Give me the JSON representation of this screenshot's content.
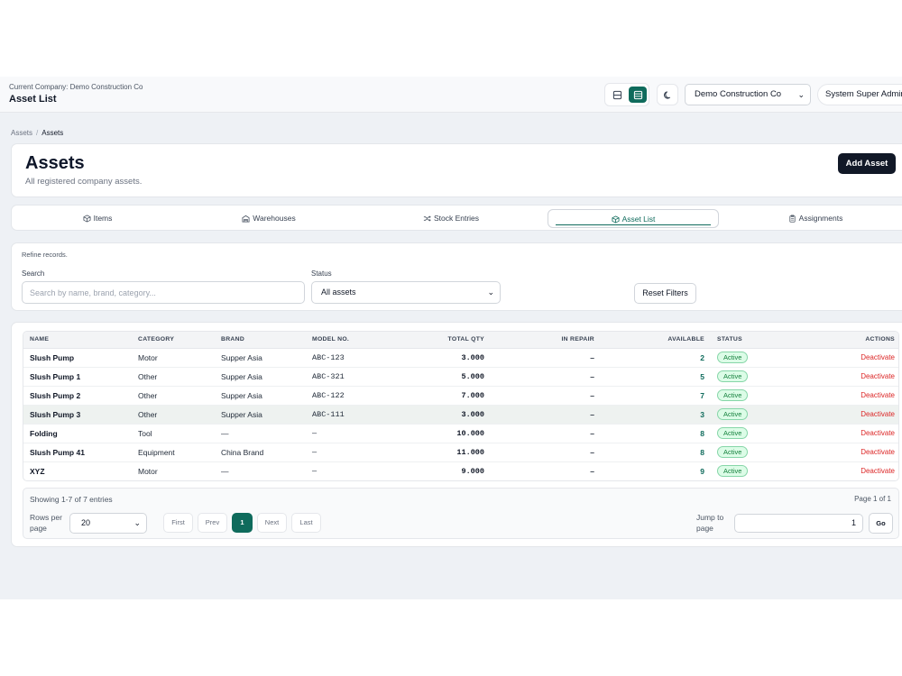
{
  "topbar": {
    "company_caption": "Current Company: Demo Construction Co",
    "title": "Asset List",
    "company_select": "Demo Construction Co",
    "user": "System Super Admin"
  },
  "breadcrumb": [
    "Assets",
    "Assets"
  ],
  "header": {
    "title": "Assets",
    "description": "All registered company assets.",
    "add_button": "Add Asset"
  },
  "tabs": [
    {
      "label": "Items",
      "icon": "cube-icon"
    },
    {
      "label": "Warehouses",
      "icon": "warehouse-icon"
    },
    {
      "label": "Stock Entries",
      "icon": "shuffle-icon"
    },
    {
      "label": "Asset List",
      "icon": "cube-icon",
      "active": true
    },
    {
      "label": "Assignments",
      "icon": "clipboard-icon"
    }
  ],
  "filters": {
    "caption": "Refine records.",
    "search_label": "Search",
    "search_placeholder": "Search by name, brand, category...",
    "status_label": "Status",
    "status_value": "All assets",
    "reset_button": "Reset Filters"
  },
  "table": {
    "columns": [
      "NAME",
      "CATEGORY",
      "BRAND",
      "MODEL NO.",
      "TOTAL QTY",
      "IN REPAIR",
      "AVAILABLE",
      "STATUS",
      "ACTIONS"
    ],
    "rows": [
      {
        "name": "Slush Pump",
        "category": "Motor",
        "brand": "Supper Asia",
        "model": "ABC-123",
        "total": "3.000",
        "repair": "–",
        "available": "2",
        "status": "Active",
        "action": "Deactivate"
      },
      {
        "name": "Slush Pump 1",
        "category": "Other",
        "brand": "Supper Asia",
        "model": "ABC-321",
        "total": "5.000",
        "repair": "–",
        "available": "5",
        "status": "Active",
        "action": "Deactivate"
      },
      {
        "name": "Slush Pump 2",
        "category": "Other",
        "brand": "Supper Asia",
        "model": "ABC-122",
        "total": "7.000",
        "repair": "–",
        "available": "7",
        "status": "Active",
        "action": "Deactivate"
      },
      {
        "name": "Slush Pump 3",
        "category": "Other",
        "brand": "Supper Asia",
        "model": "ABC-111",
        "total": "3.000",
        "repair": "–",
        "available": "3",
        "status": "Active",
        "action": "Deactivate"
      },
      {
        "name": "Folding",
        "category": "Tool",
        "brand": "—",
        "model": "—",
        "total": "10.000",
        "repair": "–",
        "available": "8",
        "status": "Active",
        "action": "Deactivate"
      },
      {
        "name": "Slush Pump 41",
        "category": "Equipment",
        "brand": "China Brand",
        "model": "—",
        "total": "11.000",
        "repair": "–",
        "available": "8",
        "status": "Active",
        "action": "Deactivate"
      },
      {
        "name": "XYZ",
        "category": "Motor",
        "brand": "—",
        "model": "—",
        "total": "9.000",
        "repair": "–",
        "available": "9",
        "status": "Active",
        "action": "Deactivate"
      }
    ]
  },
  "pagination": {
    "showing": "Showing 1-7 of 7 entries",
    "page_of": "Page 1 of 1",
    "rows_per_page_label": "Rows per page",
    "rows_per_page": "20",
    "first": "First",
    "prev": "Prev",
    "current": "1",
    "next": "Next",
    "last": "Last",
    "jump_label": "Jump to page",
    "jump_value": "1",
    "go": "Go"
  },
  "colors": {
    "accent": "#0f6b5c",
    "danger": "#dc2626",
    "active_badge_bg": "#dcfce7",
    "primary_button": "#111827"
  }
}
